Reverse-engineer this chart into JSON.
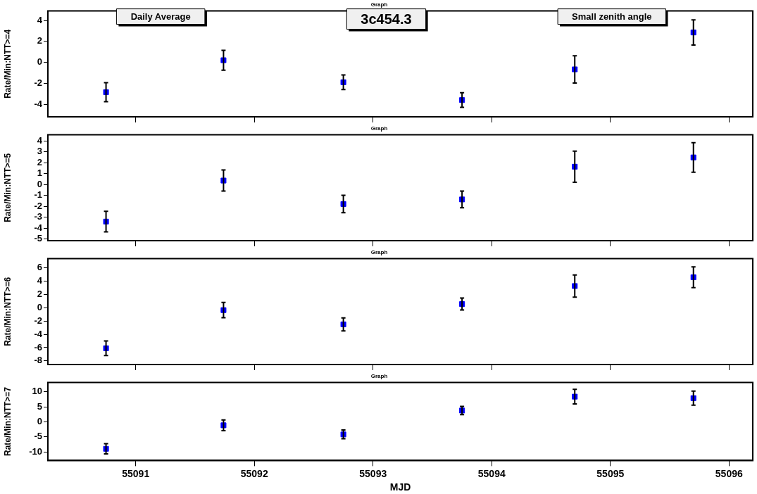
{
  "chart_data": [
    {
      "type": "scatter",
      "title": "Graph",
      "ylabel": "Rate/Min:NTT>=4",
      "annotations": [
        "Daily Average",
        "3c454.3",
        "Small zenith angle"
      ],
      "marker": "square",
      "grid": false,
      "tick_labels": "y",
      "xlim": [
        55090.26,
        55096.2
      ],
      "xticks": [
        55091,
        55092,
        55093,
        55094,
        55095,
        55096
      ],
      "ylim": [
        -5.2,
        4.9
      ],
      "yticks": [
        -4,
        -2,
        0,
        2,
        4
      ],
      "series": [
        {
          "color": "#0000ff",
          "x": [
            55090.75,
            55091.74,
            55092.75,
            55093.75,
            55094.7,
            55095.7
          ],
          "values": [
            -2.85,
            0.2,
            -1.9,
            -3.6,
            -0.67,
            2.85
          ],
          "errors": [
            0.9,
            0.95,
            0.7,
            0.7,
            1.3,
            1.2
          ]
        }
      ]
    },
    {
      "type": "scatter",
      "title": "Graph",
      "ylabel": "Rate/Min:NTT>=5",
      "marker": "square",
      "grid": false,
      "tick_labels": "y",
      "xlim": [
        55090.26,
        55096.2
      ],
      "xticks": [
        55091,
        55092,
        55093,
        55094,
        55095,
        55096
      ],
      "ylim": [
        -5.15,
        4.55
      ],
      "yticks": [
        -5,
        -4,
        -3,
        -2,
        -1,
        0,
        1,
        2,
        3,
        4
      ],
      "series": [
        {
          "color": "#0000ff",
          "x": [
            55090.75,
            55091.74,
            55092.75,
            55093.75,
            55094.7,
            55095.7
          ],
          "values": [
            -3.4,
            0.36,
            -1.79,
            -1.37,
            1.63,
            2.48
          ],
          "errors": [
            0.95,
            0.97,
            0.8,
            0.76,
            1.43,
            1.35
          ]
        }
      ]
    },
    {
      "type": "scatter",
      "title": "Graph",
      "ylabel": "Rate/Min:NTT>=6",
      "marker": "square",
      "grid": false,
      "tick_labels": "y",
      "xlim": [
        55090.26,
        55096.2
      ],
      "xticks": [
        55091,
        55092,
        55093,
        55094,
        55095,
        55096
      ],
      "ylim": [
        -8.55,
        7.4
      ],
      "yticks": [
        -8,
        -6,
        -4,
        -2,
        0,
        2,
        4,
        6
      ],
      "series": [
        {
          "color": "#0000ff",
          "x": [
            55090.75,
            55091.74,
            55092.75,
            55093.75,
            55094.7,
            55095.7
          ],
          "values": [
            -6.1,
            -0.35,
            -2.5,
            0.56,
            3.28,
            4.6
          ],
          "errors": [
            1.1,
            1.15,
            0.98,
            0.9,
            1.67,
            1.57
          ]
        }
      ]
    },
    {
      "type": "scatter",
      "title": "Graph",
      "ylabel": "Rate/Min:NTT>=7",
      "xlabel": "MJD",
      "marker": "square",
      "grid": false,
      "xlim": [
        55090.26,
        55096.2
      ],
      "xticks": [
        55091,
        55092,
        55093,
        55094,
        55095,
        55096
      ],
      "ylim": [
        -12.9,
        13.1
      ],
      "yticks": [
        -10,
        -5,
        0,
        5,
        10
      ],
      "series": [
        {
          "color": "#0000ff",
          "x": [
            55090.75,
            55091.74,
            55092.75,
            55093.75,
            55094.7,
            55095.7
          ],
          "values": [
            -9.0,
            -1.16,
            -4.2,
            3.76,
            8.4,
            7.9
          ],
          "errors": [
            1.7,
            1.77,
            1.47,
            1.4,
            2.45,
            2.33
          ]
        }
      ]
    }
  ]
}
